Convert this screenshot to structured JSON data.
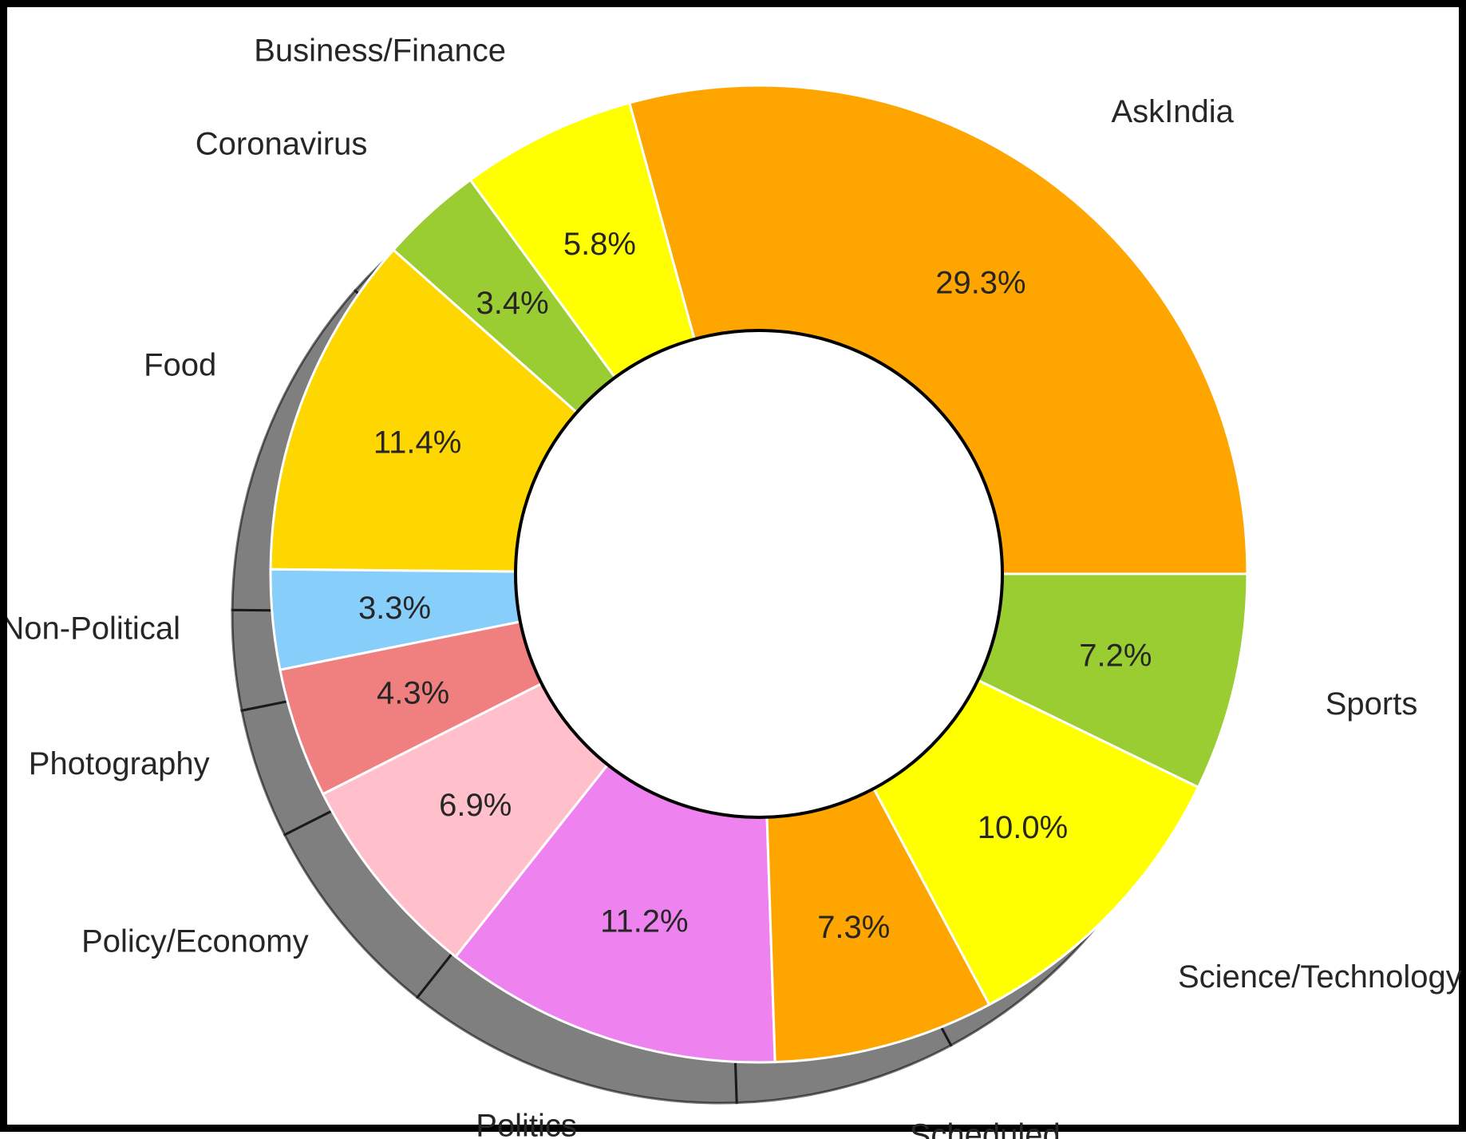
{
  "chart_data": {
    "type": "pie",
    "style": "donut",
    "start_angle_deg": 0,
    "direction": "counterclockwise",
    "shadow": true,
    "slices": [
      {
        "label": "AskIndia",
        "value": 29.3,
        "pct_label": "29.3%",
        "color": "#FFA500"
      },
      {
        "label": "Business/Finance",
        "value": 5.8,
        "pct_label": "5.8%",
        "color": "#FFFF00"
      },
      {
        "label": "Coronavirus",
        "value": 3.4,
        "pct_label": "3.4%",
        "color": "#9ACD32"
      },
      {
        "label": "Food",
        "value": 11.4,
        "pct_label": "11.4%",
        "color": "#FFD700"
      },
      {
        "label": "Non-Political",
        "value": 3.3,
        "pct_label": "3.3%",
        "color": "#87CEFA"
      },
      {
        "label": "Photography",
        "value": 4.3,
        "pct_label": "4.3%",
        "color": "#F08080"
      },
      {
        "label": "Policy/Economy",
        "value": 6.9,
        "pct_label": "6.9%",
        "color": "#FFC0CB"
      },
      {
        "label": "Politics",
        "value": 11.2,
        "pct_label": "11.2%",
        "color": "#EE82EE"
      },
      {
        "label": "Scheduled",
        "value": 7.3,
        "pct_label": "7.3%",
        "color": "#FFA500"
      },
      {
        "label": "Science/Technology",
        "value": 10.0,
        "pct_label": "10.0%",
        "color": "#FFFF00"
      },
      {
        "label": "Sports",
        "value": 7.2,
        "pct_label": "7.2%",
        "color": "#9ACD32"
      }
    ]
  }
}
